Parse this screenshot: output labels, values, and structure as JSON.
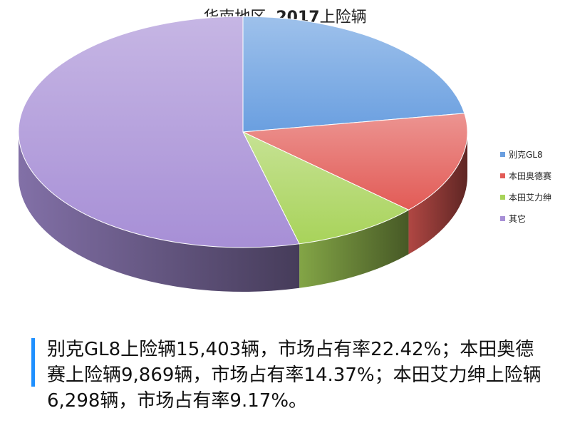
{
  "chart_data": {
    "type": "pie",
    "title_prefix": "华南地区  ",
    "title_year": "2017",
    "title_suffix": "上险辆",
    "categories": [
      "别克GL8",
      "本田奥德赛",
      "本田艾力绅",
      "其它"
    ],
    "values": [
      22.42,
      14.37,
      9.17,
      54.04
    ],
    "colors": [
      "#6a9fe0",
      "#e25b56",
      "#a8d35a",
      "#a78fd6"
    ],
    "legend_position": "right",
    "three_d": true
  },
  "caption": {
    "text": "别克GL8上险辆15,403辆，市场占有率22.42%；本田奥德赛上险辆9,869辆，市场占有率14.37%；本田艾力绅上险辆6,298辆，市场占有率9.17%。",
    "accent_color": "#1e90ff"
  }
}
